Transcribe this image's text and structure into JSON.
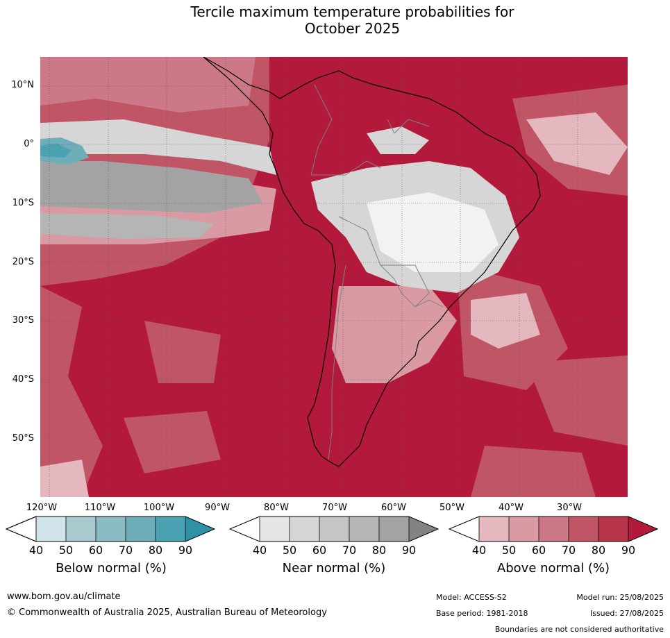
{
  "title_line1": "Tercile maximum temperature probabilities for",
  "title_line2": "October 2025",
  "lat_labels": [
    "10°N",
    "0°",
    "10°S",
    "20°S",
    "30°S",
    "40°S",
    "50°S"
  ],
  "lon_labels": [
    "120°W",
    "110°W",
    "100°W",
    "90°W",
    "80°W",
    "70°W",
    "60°W",
    "50°W",
    "40°W",
    "30°W"
  ],
  "colorbars": [
    {
      "title": "Below normal (%)",
      "ticks": [
        "40",
        "50",
        "60",
        "70",
        "80",
        "90"
      ],
      "colors": [
        "#ffffff",
        "#cfe3e8",
        "#a8cacf",
        "#8bbbc3",
        "#6daeb9",
        "#4aa2b2",
        "#2e91a6"
      ]
    },
    {
      "title": "Near normal (%)",
      "ticks": [
        "40",
        "50",
        "60",
        "70",
        "80",
        "90"
      ],
      "colors": [
        "#ffffff",
        "#e5e5e5",
        "#d6d6d6",
        "#c5c5c5",
        "#b5b5b5",
        "#a3a3a3",
        "#838383"
      ]
    },
    {
      "title": "Above normal (%)",
      "ticks": [
        "40",
        "50",
        "60",
        "70",
        "80",
        "90"
      ],
      "colors": [
        "#ffffff",
        "#e5b8bf",
        "#d99aa3",
        "#cd7886",
        "#c05565",
        "#b8344a",
        "#b2193a"
      ]
    }
  ],
  "footer": {
    "url": "www.bom.gov.au/climate",
    "copyright": "© Commonwealth of Australia 2025, Australian Bureau of Meteorology",
    "model": "Model: ACCESS-S2",
    "base_period": "Base period: 1981-2018",
    "model_run": "Model run: 25/08/2025",
    "issued": "Issued: 27/08/2025",
    "disclaimer": "Boundaries are not considered authoritative"
  }
}
